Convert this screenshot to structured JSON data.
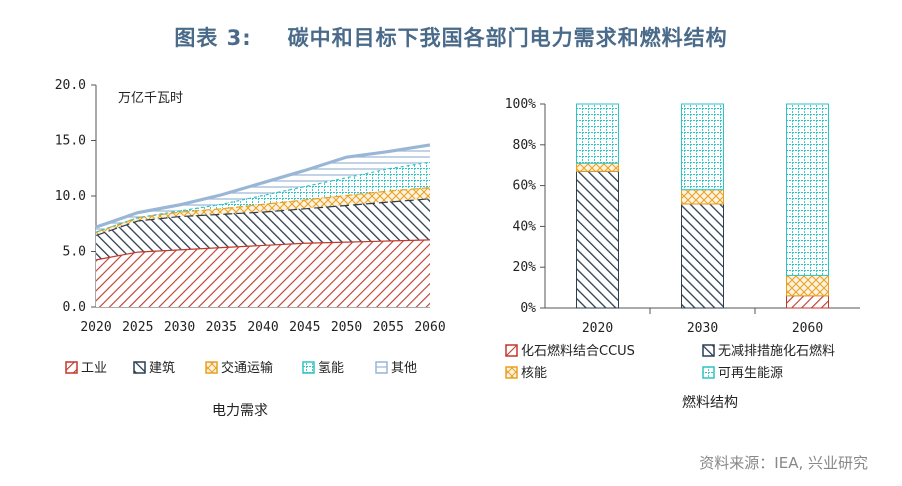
{
  "figure": {
    "label": "图表 3:",
    "title": "碳中和目标下我国各部门电力需求和燃料结构",
    "source": "资料来源：IEA, 兴业研究"
  },
  "chart_data": [
    {
      "type": "area",
      "stacked": true,
      "title": "电力需求",
      "ylabel": "万亿千瓦时",
      "x": [
        2020,
        2025,
        2030,
        2035,
        2040,
        2045,
        2050,
        2055,
        2060
      ],
      "ylim": [
        0,
        20
      ],
      "yticks": [
        "0.0",
        "5.0",
        "10.0",
        "15.0",
        "20.0"
      ],
      "grid": false,
      "legend": "bottom",
      "series": [
        {
          "name": "工业",
          "values": [
            4.3,
            5.0,
            5.2,
            5.4,
            5.6,
            5.8,
            5.9,
            6.0,
            6.1
          ],
          "color": "#c0392b"
        },
        {
          "name": "建筑",
          "values": [
            2.2,
            2.8,
            3.0,
            3.0,
            3.0,
            3.1,
            3.3,
            3.5,
            3.7
          ],
          "color": "#2c3e50"
        },
        {
          "name": "交通运输",
          "values": [
            0.3,
            0.3,
            0.4,
            0.5,
            0.7,
            0.8,
            0.9,
            1.0,
            1.0
          ],
          "color": "#e8a020"
        },
        {
          "name": "氢能",
          "values": [
            0.0,
            0.0,
            0.1,
            0.4,
            0.8,
            1.2,
            1.6,
            2.0,
            2.3
          ],
          "color": "#2ec4c4"
        },
        {
          "name": "其他",
          "values": [
            0.4,
            0.4,
            0.5,
            0.8,
            1.1,
            1.4,
            1.8,
            1.5,
            1.5
          ],
          "color": "#9ab6d6"
        }
      ]
    },
    {
      "type": "bar",
      "stacked": true,
      "title": "燃料结构",
      "categories": [
        "2020",
        "2030",
        "2060"
      ],
      "ylim": [
        0,
        100
      ],
      "yticks": [
        "0%",
        "20%",
        "40%",
        "60%",
        "80%",
        "100%"
      ],
      "legend": "bottom",
      "series": [
        {
          "name": "化石燃料结合CCUS",
          "values": [
            0,
            0,
            6
          ],
          "color": "#c0392b"
        },
        {
          "name": "无减排措施化石燃料",
          "values": [
            67,
            51,
            0
          ],
          "color": "#2c3e50"
        },
        {
          "name": "核能",
          "values": [
            4,
            7,
            10
          ],
          "color": "#e8a020"
        },
        {
          "name": "可再生能源",
          "values": [
            29,
            42,
            84
          ],
          "color": "#2ec4c4"
        }
      ]
    }
  ]
}
